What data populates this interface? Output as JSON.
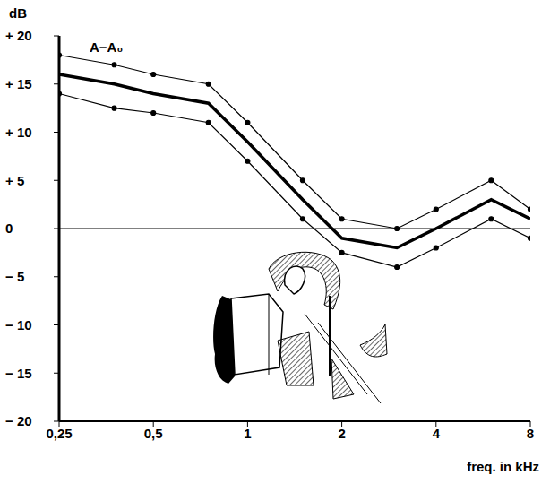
{
  "chart_data": {
    "type": "line",
    "title": "A−A₀",
    "y_label": "dB",
    "x_label": "freq. in kHz",
    "log": "x",
    "grid": false,
    "x": [
      0.25,
      0.375,
      0.5,
      0.75,
      1,
      1.5,
      2,
      3,
      4,
      6,
      8
    ],
    "series": [
      {
        "color": "#000000",
        "marker": "circle",
        "line_style": "thin",
        "values": [
          18,
          17,
          16,
          15,
          11,
          5,
          1,
          0,
          2,
          5,
          2
        ]
      },
      {
        "color": "#000000",
        "marker": "none",
        "line_style": "thick",
        "values": [
          16,
          15,
          14,
          13,
          9,
          3,
          -1,
          -2,
          0,
          3,
          1
        ]
      },
      {
        "color": "#000000",
        "marker": "circle",
        "line_style": "thin",
        "values": [
          14,
          12.5,
          12,
          11,
          7,
          1,
          -2.5,
          -4,
          -2,
          1,
          -1
        ]
      }
    ],
    "xlim": [
      0.25,
      8
    ],
    "xticks": [
      {
        "value": 0.25,
        "label": "0,25"
      },
      {
        "value": 0.5,
        "label": "0,5"
      },
      1,
      2,
      4,
      8
    ],
    "ylim": [
      -20,
      20
    ],
    "yticks": [
      {
        "value": 20,
        "label": "+ 20"
      },
      {
        "value": 15,
        "label": "+ 15"
      },
      {
        "value": 10,
        "label": "+ 10"
      },
      {
        "value": 5,
        "label": "+  5"
      },
      0,
      {
        "value": -5,
        "label": "−  5"
      },
      {
        "value": -10,
        "label": "− 10"
      },
      {
        "value": -15,
        "label": "− 15"
      },
      {
        "value": -20,
        "label": "− 20"
      }
    ]
  }
}
